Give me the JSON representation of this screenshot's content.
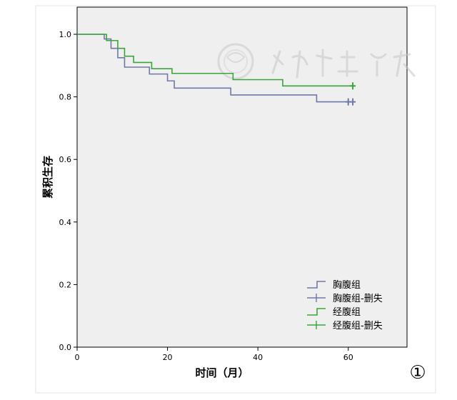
{
  "chart_data": {
    "type": "line",
    "subtype": "kaplan-meier survival curve",
    "title": "",
    "xlabel": "时间（月）",
    "ylabel": "累积生存",
    "xlim": [
      0,
      73
    ],
    "ylim": [
      0.0,
      1.0
    ],
    "x_ticks": [
      "0",
      "20",
      "40",
      "60"
    ],
    "y_ticks": [
      "0.0",
      "0.2",
      "0.4",
      "0.6",
      "0.8",
      "1.0"
    ],
    "grid": false,
    "legend_position": "bottom-right",
    "legend": [
      {
        "label": "胸腹组",
        "symbol": "step",
        "color": "#7078a8"
      },
      {
        "label": "胸腹组-删失",
        "symbol": "censor",
        "color": "#7078a8"
      },
      {
        "label": "经腹组",
        "symbol": "step",
        "color": "#3aa53a"
      },
      {
        "label": "经腹组-删失",
        "symbol": "censor",
        "color": "#3aa53a"
      }
    ],
    "series": [
      {
        "name": "胸腹组",
        "color": "#7078a8",
        "x": [
          0,
          6,
          7.5,
          9,
          10.5,
          16,
          20,
          21.5,
          34,
          53,
          60.5
        ],
        "y": [
          1.0,
          0.985,
          0.955,
          0.925,
          0.895,
          0.873,
          0.851,
          0.828,
          0.806,
          0.784,
          0.784
        ],
        "censored_x": [
          60,
          61
        ]
      },
      {
        "name": "经腹组",
        "color": "#3aa53a",
        "x": [
          0,
          6.5,
          9,
          10.5,
          12.5,
          16.5,
          21,
          34.5,
          45.5,
          61
        ],
        "y": [
          1.0,
          0.98,
          0.955,
          0.93,
          0.91,
          0.89,
          0.875,
          0.855,
          0.835,
          0.835
        ],
        "censored_x": [
          61
        ]
      }
    ]
  },
  "annotations": {
    "figure_number": "①",
    "watermark": "中华医学会"
  },
  "colors": {
    "plot_background": "#efefef",
    "axis": "#000000"
  }
}
